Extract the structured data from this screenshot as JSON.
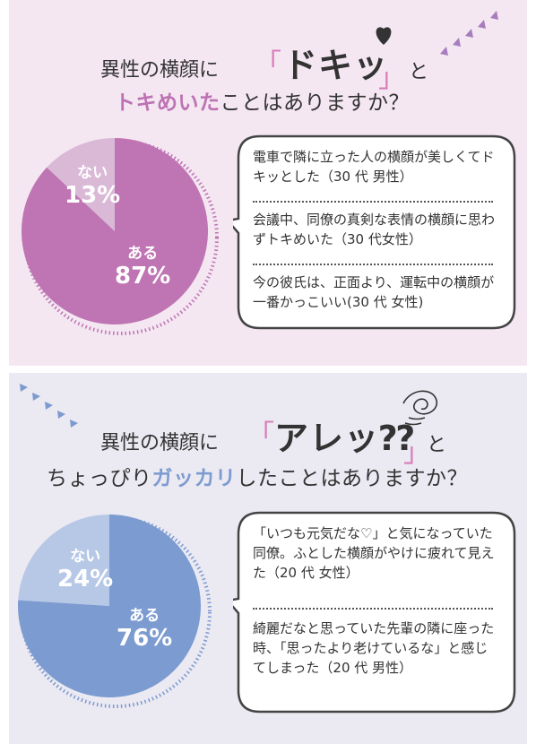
{
  "question_1": {
    "prefix": "異性の横顔に",
    "open_bracket": "「",
    "keyword": "ドキッ",
    "close_bracket": "」",
    "particle": "と",
    "line2_highlight": "トキめいた",
    "line2_rest": "ことはありますか？",
    "accent_color": "#bd72b4",
    "icon": "heart-icon"
  },
  "question_2": {
    "prefix": "異性の横顔に",
    "open_bracket": "「",
    "keyword": "アレッ⁇",
    "close_bracket": "」",
    "particle": "と",
    "line2_pre": "ちょっぴり",
    "line2_highlight": "ガッカリ",
    "line2_rest": "したことはありますか？",
    "accent_color": "#7d9bd0",
    "icon": "scribble-icon"
  },
  "chart_data": [
    {
      "type": "pie",
      "categories": [
        "ない",
        "ある"
      ],
      "values": [
        13,
        87
      ],
      "value_labels": [
        "13%",
        "87%"
      ],
      "colors": [
        "#dab9d7",
        "#bf75b3"
      ]
    },
    {
      "type": "pie",
      "categories": [
        "ない",
        "ある"
      ],
      "values": [
        24,
        76
      ],
      "value_labels": [
        "24%",
        "76%"
      ],
      "colors": [
        "#b7c8e7",
        "#7c9bd0"
      ]
    }
  ],
  "comments_1": [
    "電車で隣に立った人の横顔が美しくてドキッとした（30 代 男性）",
    "会議中、同僚の真剣な表情の横顔に思わずトキめいた（30 代女性）",
    "今の彼氏は、正面より、運転中の横顔が一番かっこいい(30 代 女性)"
  ],
  "comments_2": [
    "「いつも元気だな♡」と気になっていた同僚。ふとした横顔がやけに疲れて見えた（20 代 女性）",
    "綺麗だなと思っていた先輩の隣に座った時、「思ったより老けているな」と感じてしまった（20 代 男性）"
  ]
}
